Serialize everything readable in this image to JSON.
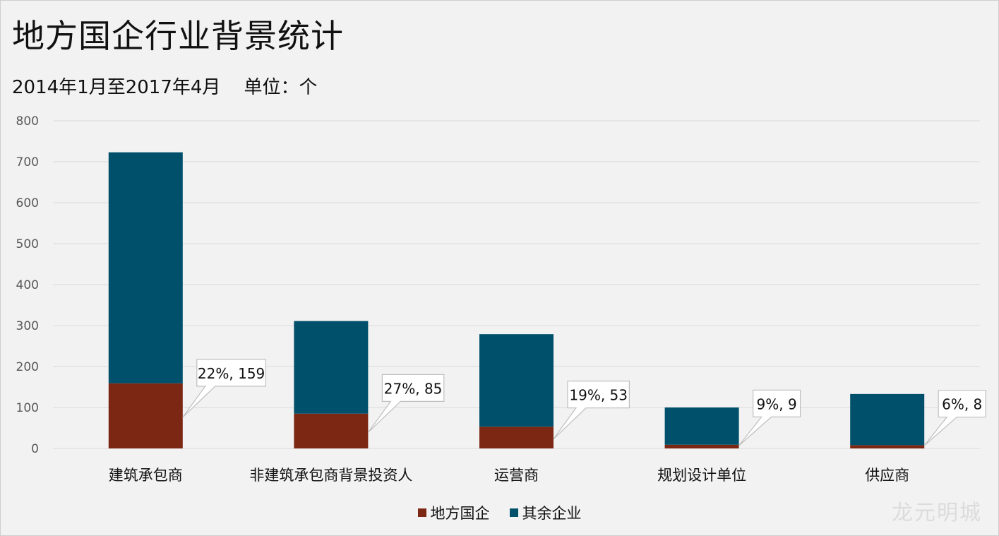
{
  "title": "地方国企行业背景统计",
  "subtitle": "2014年1月至2017年4月    单位：个",
  "watermark": "龙元明城",
  "colors": {
    "local_soe": "#7b2713",
    "others": "#00506b",
    "grid": "#d9d9d9",
    "background": "#f2f2f2"
  },
  "chart_data": {
    "type": "bar",
    "stacked": true,
    "categories": [
      "建筑承包商",
      "非建筑承包商背景投资人",
      "运营商",
      "规划设计单位",
      "供应商"
    ],
    "series": [
      {
        "name": "地方国企",
        "values": [
          159,
          85,
          53,
          9,
          8
        ]
      },
      {
        "name": "其余企业",
        "values": [
          564,
          226,
          226,
          91,
          125
        ]
      }
    ],
    "data_labels": [
      "22%, 159",
      "27%, 85",
      "19%, 53",
      "9%, 9",
      "6%, 8"
    ],
    "ylim": [
      0,
      800
    ],
    "yticks": [
      0,
      100,
      200,
      300,
      400,
      500,
      600,
      700,
      800
    ],
    "grid": true,
    "legend": "bottom"
  }
}
